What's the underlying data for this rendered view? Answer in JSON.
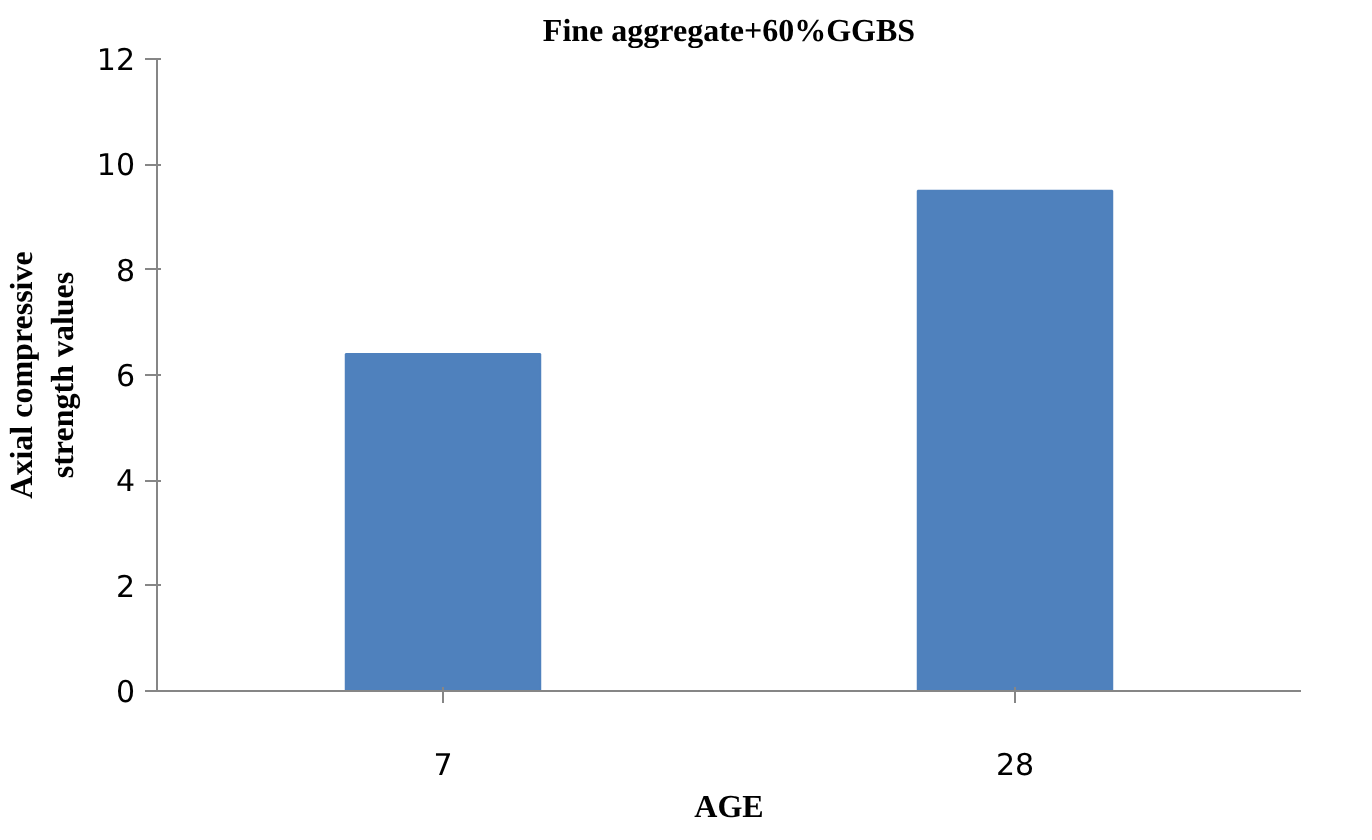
{
  "chart_data": {
    "type": "bar",
    "title": "Fine aggregate+60%GGBS",
    "xlabel": "AGE",
    "ylabel": "Axial compressive strength values",
    "categories": [
      "7",
      "28"
    ],
    "values": [
      6.4,
      9.5
    ],
    "color": "#4f81bd",
    "ylim": [
      0,
      12
    ],
    "yticks": [
      0,
      2,
      4,
      6,
      8,
      10,
      12
    ],
    "grid": false
  }
}
